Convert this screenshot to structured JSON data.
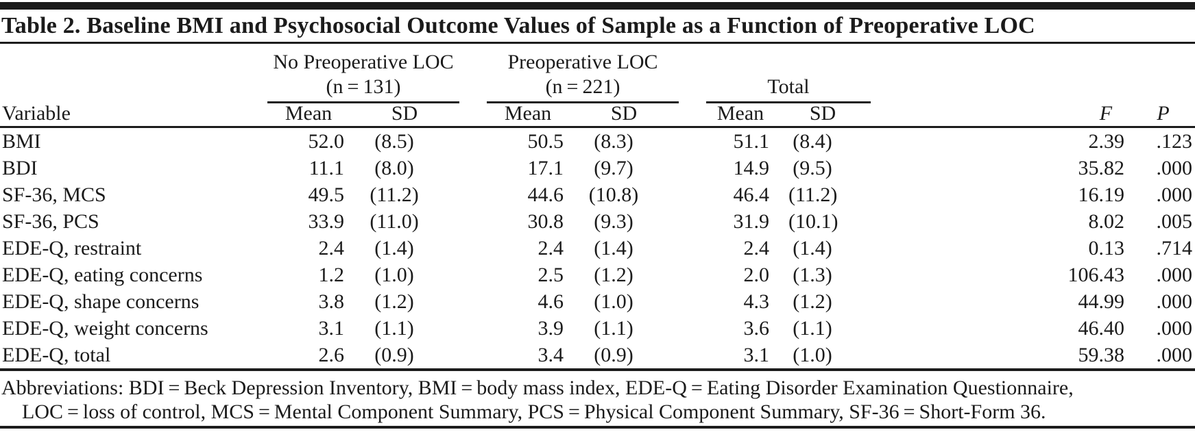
{
  "page": {
    "background": "#ffffff",
    "text_color": "#1b1b1b",
    "rule_color": "#1c1c1c"
  },
  "table": {
    "title": "Table 2. Baseline BMI and Psychosocial Outcome Values of Sample as a Function of Preoperative LOC",
    "col_groups": [
      {
        "label": "No Preoperative LOC",
        "sub": "(n = 131)"
      },
      {
        "label": "Preoperative LOC",
        "sub": "(n = 221)"
      },
      {
        "label": "Total",
        "sub": ""
      }
    ],
    "headers": {
      "variable": "Variable",
      "mean": "Mean",
      "sd": "SD",
      "f": "F",
      "p": "P"
    },
    "rows": [
      {
        "variable": "BMI",
        "no_loc_mean": "52.0",
        "no_loc_sd": "(8.5)",
        "loc_mean": "50.5",
        "loc_sd": "(8.3)",
        "total_mean": "51.1",
        "total_sd": "(8.4)",
        "f": "2.39",
        "p": ".123"
      },
      {
        "variable": "BDI",
        "no_loc_mean": "11.1",
        "no_loc_sd": "(8.0)",
        "loc_mean": "17.1",
        "loc_sd": "(9.7)",
        "total_mean": "14.9",
        "total_sd": "(9.5)",
        "f": "35.82",
        "p": ".000"
      },
      {
        "variable": "SF-36, MCS",
        "no_loc_mean": "49.5",
        "no_loc_sd": "(11.2)",
        "loc_mean": "44.6",
        "loc_sd": "(10.8)",
        "total_mean": "46.4",
        "total_sd": "(11.2)",
        "f": "16.19",
        "p": ".000"
      },
      {
        "variable": "SF-36, PCS",
        "no_loc_mean": "33.9",
        "no_loc_sd": "(11.0)",
        "loc_mean": "30.8",
        "loc_sd": "(9.3)",
        "total_mean": "31.9",
        "total_sd": "(10.1)",
        "f": "8.02",
        "p": ".005"
      },
      {
        "variable": "EDE-Q, restraint",
        "no_loc_mean": "2.4",
        "no_loc_sd": "(1.4)",
        "loc_mean": "2.4",
        "loc_sd": "(1.4)",
        "total_mean": "2.4",
        "total_sd": "(1.4)",
        "f": "0.13",
        "p": ".714"
      },
      {
        "variable": "EDE-Q, eating concerns",
        "no_loc_mean": "1.2",
        "no_loc_sd": "(1.0)",
        "loc_mean": "2.5",
        "loc_sd": "(1.2)",
        "total_mean": "2.0",
        "total_sd": "(1.3)",
        "f": "106.43",
        "p": ".000"
      },
      {
        "variable": "EDE-Q, shape concerns",
        "no_loc_mean": "3.8",
        "no_loc_sd": "(1.2)",
        "loc_mean": "4.6",
        "loc_sd": "(1.0)",
        "total_mean": "4.3",
        "total_sd": "(1.2)",
        "f": "44.99",
        "p": ".000"
      },
      {
        "variable": "EDE-Q, weight concerns",
        "no_loc_mean": "3.1",
        "no_loc_sd": "(1.1)",
        "loc_mean": "3.9",
        "loc_sd": "(1.1)",
        "total_mean": "3.6",
        "total_sd": "(1.1)",
        "f": "46.40",
        "p": ".000"
      },
      {
        "variable": "EDE-Q, total",
        "no_loc_mean": "2.6",
        "no_loc_sd": "(0.9)",
        "loc_mean": "3.4",
        "loc_sd": "(0.9)",
        "total_mean": "3.1",
        "total_sd": "(1.0)",
        "f": "59.38",
        "p": ".000"
      }
    ],
    "footnote": {
      "line1": "Abbreviations: BDI = Beck Depression Inventory, BMI = body mass index, EDE-Q = Eating Disorder Examination Questionnaire,",
      "line2": "LOC = loss of control, MCS = Mental Component Summary, PCS = Physical Component Summary, SF-36 = Short-Form 36."
    }
  }
}
